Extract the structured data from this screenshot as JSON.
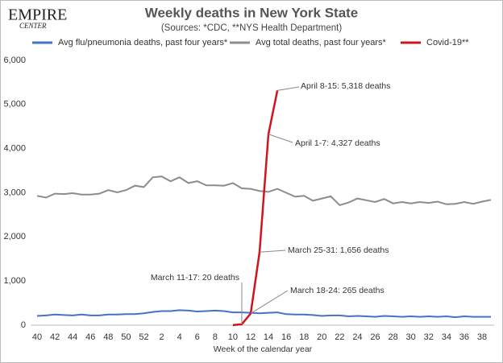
{
  "logo": [
    "EMPIRE",
    "CENTER"
  ],
  "chart_data": {
    "type": "line",
    "title": "Weekly deaths in New York State",
    "subtitle": "(Sources: *CDC, **NYS Health Department)",
    "x_label": "Week of the calendar year",
    "categories": [
      "40",
      null,
      "42",
      null,
      "44",
      null,
      "46",
      null,
      "48",
      null,
      "50",
      null,
      "52",
      null,
      "2",
      null,
      "4",
      null,
      "6",
      null,
      "8",
      null,
      "10",
      null,
      "12",
      null,
      "14",
      null,
      "16",
      null,
      "18",
      null,
      "20",
      null,
      "22",
      null,
      "24",
      null,
      "26",
      null,
      "28",
      null,
      "30",
      null,
      "32",
      null,
      "34",
      null,
      "36",
      null,
      "38",
      null
    ],
    "series": [
      {
        "name": "Avg flu/pneumonia deaths, past four years*",
        "color": "#4472c4",
        "values": [
          210,
          220,
          240,
          230,
          220,
          240,
          220,
          220,
          240,
          240,
          250,
          250,
          270,
          300,
          320,
          320,
          340,
          330,
          310,
          320,
          330,
          320,
          290,
          290,
          280,
          270,
          280,
          290,
          250,
          240,
          240,
          230,
          210,
          220,
          220,
          200,
          210,
          200,
          190,
          210,
          200,
          190,
          200,
          190,
          200,
          190,
          200,
          180,
          200,
          190,
          190,
          190
        ]
      },
      {
        "name": "Avg total deaths, past four years*",
        "color": "#8c8c8c",
        "values": [
          2930,
          2890,
          2980,
          2970,
          2990,
          2960,
          2960,
          2980,
          3060,
          3010,
          3060,
          3160,
          3130,
          3350,
          3370,
          3260,
          3350,
          3220,
          3260,
          3170,
          3170,
          3160,
          3220,
          3100,
          3090,
          3040,
          3020,
          3090,
          3000,
          2910,
          2930,
          2820,
          2870,
          2920,
          2720,
          2780,
          2870,
          2830,
          2790,
          2860,
          2760,
          2790,
          2760,
          2790,
          2770,
          2800,
          2740,
          2750,
          2790,
          2750,
          2800,
          2840
        ]
      },
      {
        "name": "Covid-19**",
        "color": "#d0141c",
        "values": [
          null,
          null,
          null,
          null,
          null,
          null,
          null,
          null,
          null,
          null,
          null,
          null,
          null,
          null,
          null,
          null,
          null,
          null,
          null,
          null,
          null,
          null,
          2,
          20,
          265,
          1656,
          4327,
          5318,
          null,
          null,
          null,
          null,
          null,
          null,
          null,
          null,
          null,
          null,
          null,
          null,
          null,
          null,
          null,
          null,
          null,
          null,
          null,
          null,
          null,
          null,
          null,
          null
        ]
      }
    ],
    "ylim": [
      0,
      6000
    ],
    "yticks": [
      0,
      {
        "value": 1000,
        "label": "1,000"
      },
      {
        "value": 2000,
        "label": "2,000"
      },
      {
        "value": 3000,
        "label": "3,000"
      },
      {
        "value": 4000,
        "label": "4,000"
      },
      {
        "value": 5000,
        "label": "5,000"
      },
      {
        "value": 6000,
        "label": "6,000"
      }
    ],
    "grid": false,
    "legend": "top",
    "annotations": [
      "April 8-15: 5,318 deaths",
      "April 1-7: 4,327 deaths",
      "March 25-31: 1,656 deaths",
      "March 11-17: 20 deaths",
      "March 18-24: 265 deaths"
    ]
  }
}
